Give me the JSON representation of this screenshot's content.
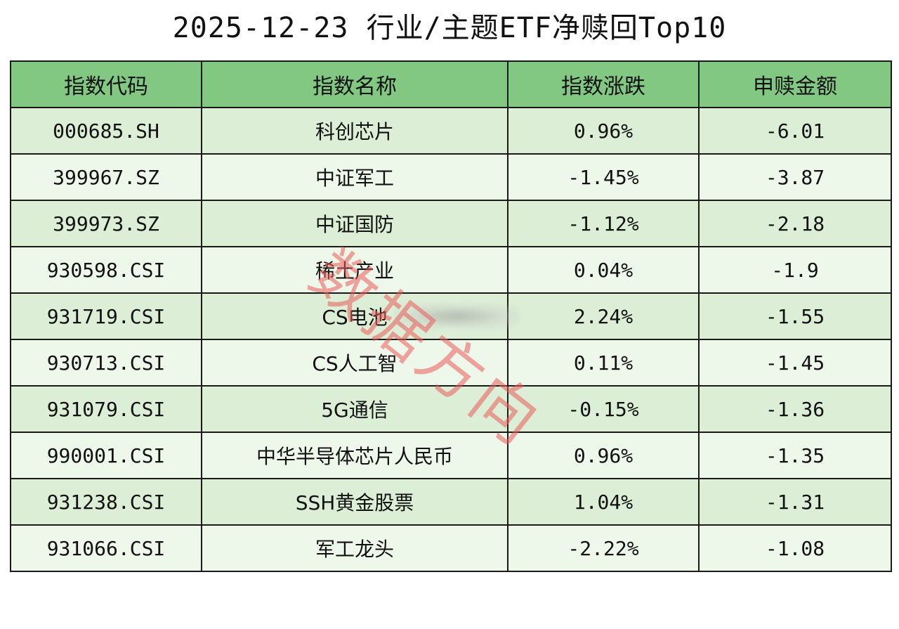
{
  "title": "2025-12-23 行业/主题ETF净赎回Top10",
  "table": {
    "headers": [
      "指数代码",
      "指数名称",
      "指数涨跌",
      "申赎金额"
    ],
    "rows": [
      {
        "code": "000685.SH",
        "name": "科创芯片",
        "change": "0.96%",
        "amount": "-6.01"
      },
      {
        "code": "399967.SZ",
        "name": "中证军工",
        "change": "-1.45%",
        "amount": "-3.87"
      },
      {
        "code": "399973.SZ",
        "name": "中证国防",
        "change": "-1.12%",
        "amount": "-2.18"
      },
      {
        "code": "930598.CSI",
        "name": "稀土产业",
        "change": "0.04%",
        "amount": "-1.9"
      },
      {
        "code": "931719.CSI",
        "name": "CS电池",
        "change": "2.24%",
        "amount": "-1.55"
      },
      {
        "code": "930713.CSI",
        "name": "CS人工智",
        "change": "0.11%",
        "amount": "-1.45"
      },
      {
        "code": "931079.CSI",
        "name": "5G通信",
        "change": "-0.15%",
        "amount": "-1.36"
      },
      {
        "code": "990001.CSI",
        "name": "中华半导体芯片人民币",
        "change": "0.96%",
        "amount": "-1.35"
      },
      {
        "code": "931238.CSI",
        "name": "SSH黄金股票",
        "change": "1.04%",
        "amount": "-1.31"
      },
      {
        "code": "931066.CSI",
        "name": "军工龙头",
        "change": "-2.22%",
        "amount": "-1.08"
      }
    ]
  },
  "watermark": "数据方向",
  "colors": {
    "header_bg": "#82c882",
    "row_odd_bg": "#dcefd6",
    "row_even_bg": "#eef8ea",
    "watermark": "#eb5a5a"
  }
}
